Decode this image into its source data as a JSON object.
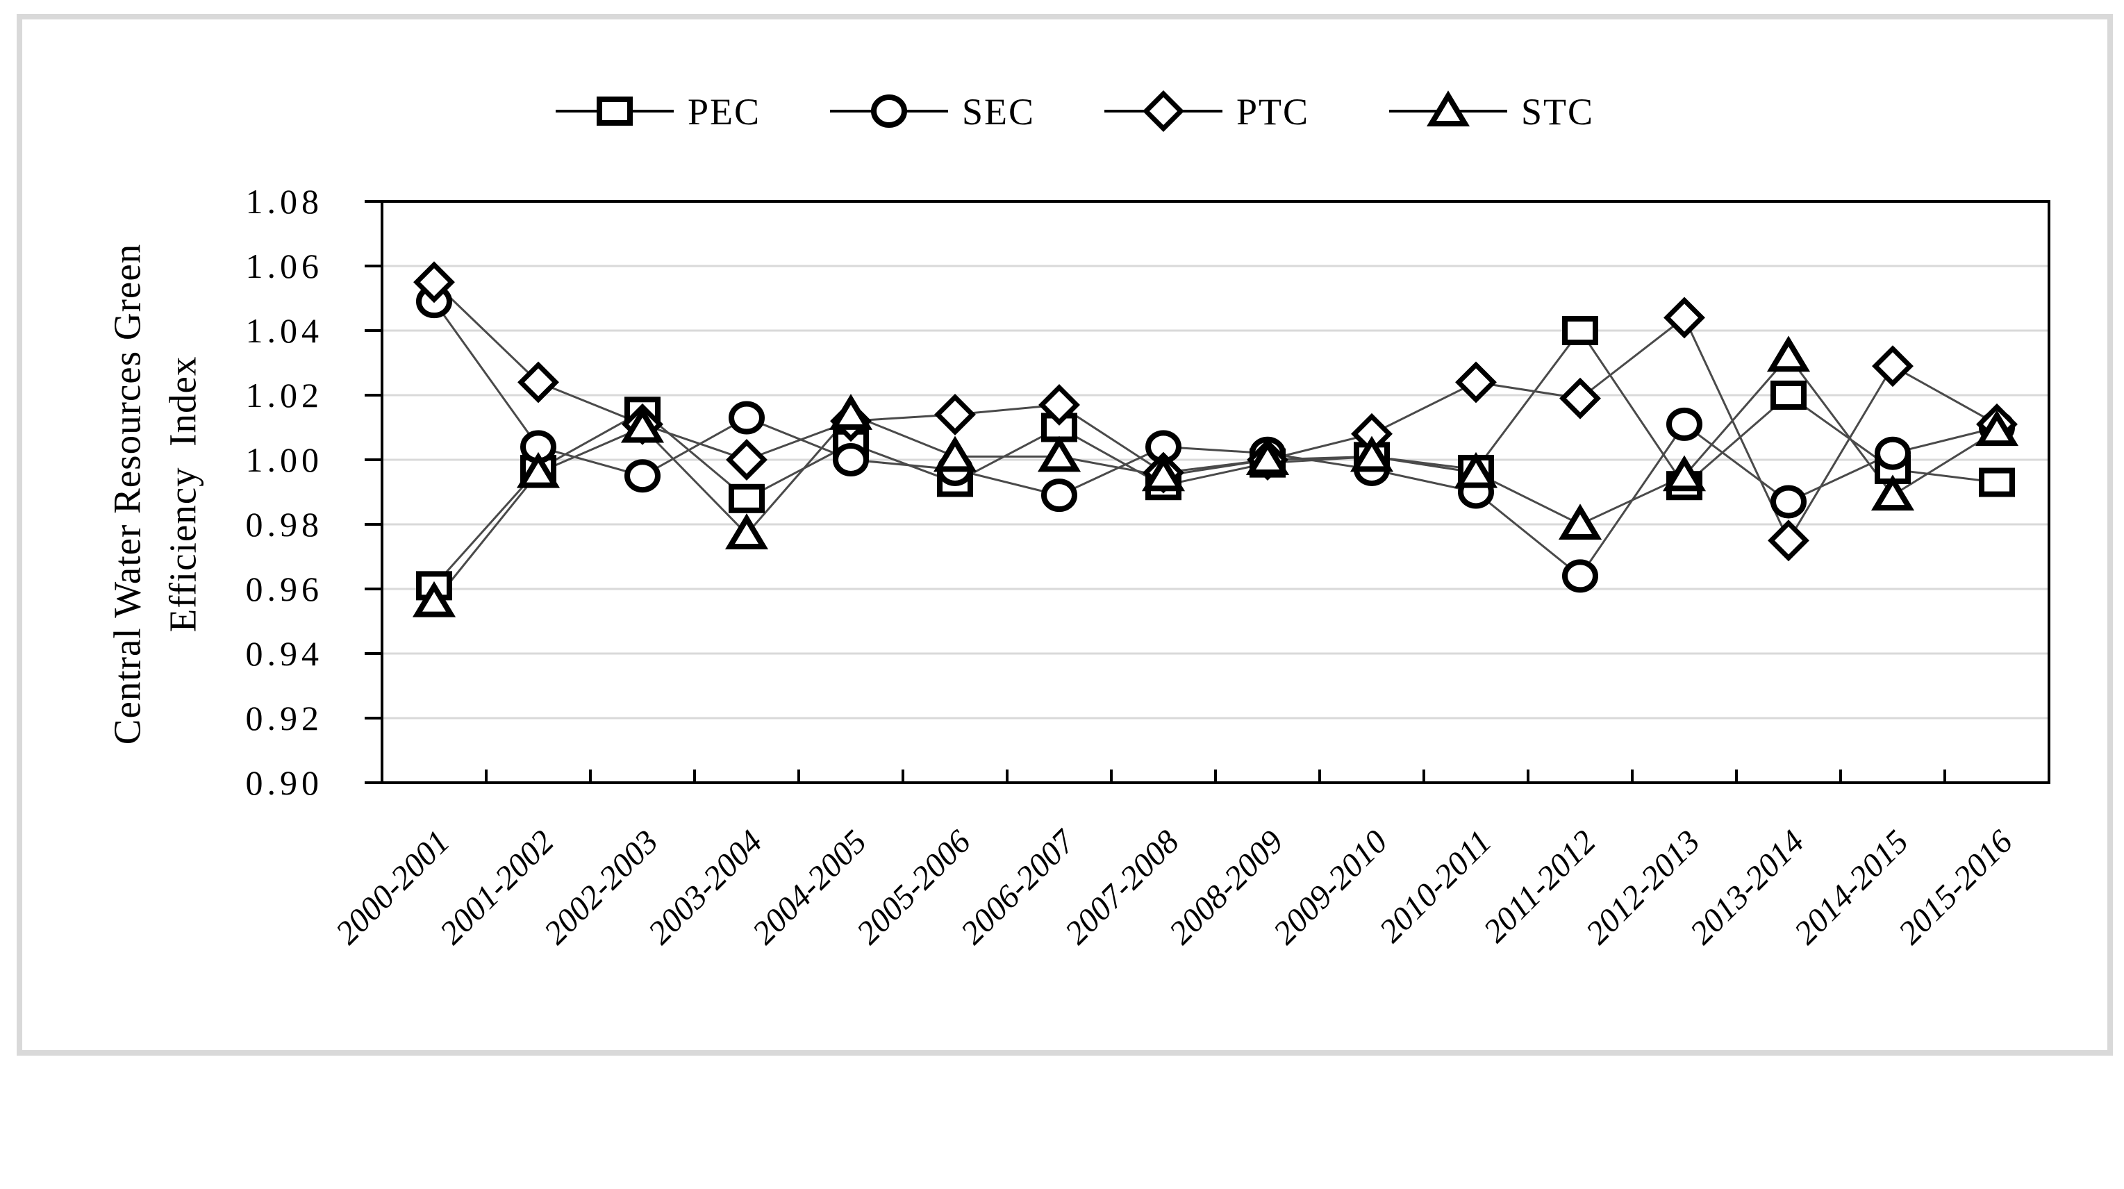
{
  "figure": {
    "background": "#ffffff",
    "border_color": "#d9d9d9",
    "line_color": "#4a4a4a",
    "marker_stroke_color": "#000000",
    "gridline_color": "#d9d9d9",
    "axis_color": "#000000"
  },
  "y_axis": {
    "title_line1": "Central Water Resources Green",
    "title_line2": "Efficiency  Index",
    "tick_labels": [
      "1.08",
      "1.06",
      "1.04",
      "1.02",
      "1.00",
      "0.98",
      "0.96",
      "0.94",
      "0.92",
      "0.90"
    ]
  },
  "legend": {
    "items": [
      {
        "label": "PEC",
        "marker": "square"
      },
      {
        "label": "SEC",
        "marker": "circle"
      },
      {
        "label": "PTC",
        "marker": "diamond"
      },
      {
        "label": "STC",
        "marker": "triangle"
      }
    ]
  },
  "chart_data": {
    "type": "line",
    "title": "",
    "xlabel": "",
    "ylabel": "Central Water Resources Green Efficiency Index",
    "ylim": [
      0.9,
      1.08
    ],
    "ytick_step": 0.02,
    "grid": "horizontal-only",
    "legend_position": "top-center",
    "categories": [
      "2000-2001",
      "2001-2002",
      "2002-2003",
      "2003-2004",
      "2004-2005",
      "2005-2006",
      "2006-2007",
      "2007-2008",
      "2008-2009",
      "2009-2010",
      "2010-2011",
      "2011-2012",
      "2012-2013",
      "2013-2014",
      "2014-2015",
      "2015-2016"
    ],
    "series": [
      {
        "name": "PEC",
        "marker": "square",
        "values": [
          0.961,
          0.997,
          1.015,
          0.988,
          1.005,
          0.993,
          1.01,
          0.992,
          0.999,
          1.001,
          0.997,
          1.04,
          0.992,
          1.02,
          0.997,
          0.993
        ]
      },
      {
        "name": "SEC",
        "marker": "circle",
        "values": [
          1.049,
          1.004,
          0.995,
          1.013,
          1.0,
          0.997,
          0.989,
          1.004,
          1.002,
          0.997,
          0.99,
          0.964,
          1.011,
          0.987,
          1.002,
          1.01
        ]
      },
      {
        "name": "PTC",
        "marker": "diamond",
        "values": [
          1.055,
          1.024,
          1.011,
          1.0,
          1.012,
          1.014,
          1.017,
          0.996,
          1.0,
          1.008,
          1.024,
          1.019,
          1.044,
          0.975,
          1.029,
          1.011
        ]
      },
      {
        "name": "STC",
        "marker": "triangle",
        "values": [
          0.956,
          0.996,
          1.01,
          0.977,
          1.014,
          1.001,
          1.001,
          0.995,
          1.0,
          1.001,
          0.996,
          0.98,
          0.995,
          1.032,
          0.989,
          1.009
        ]
      }
    ]
  }
}
